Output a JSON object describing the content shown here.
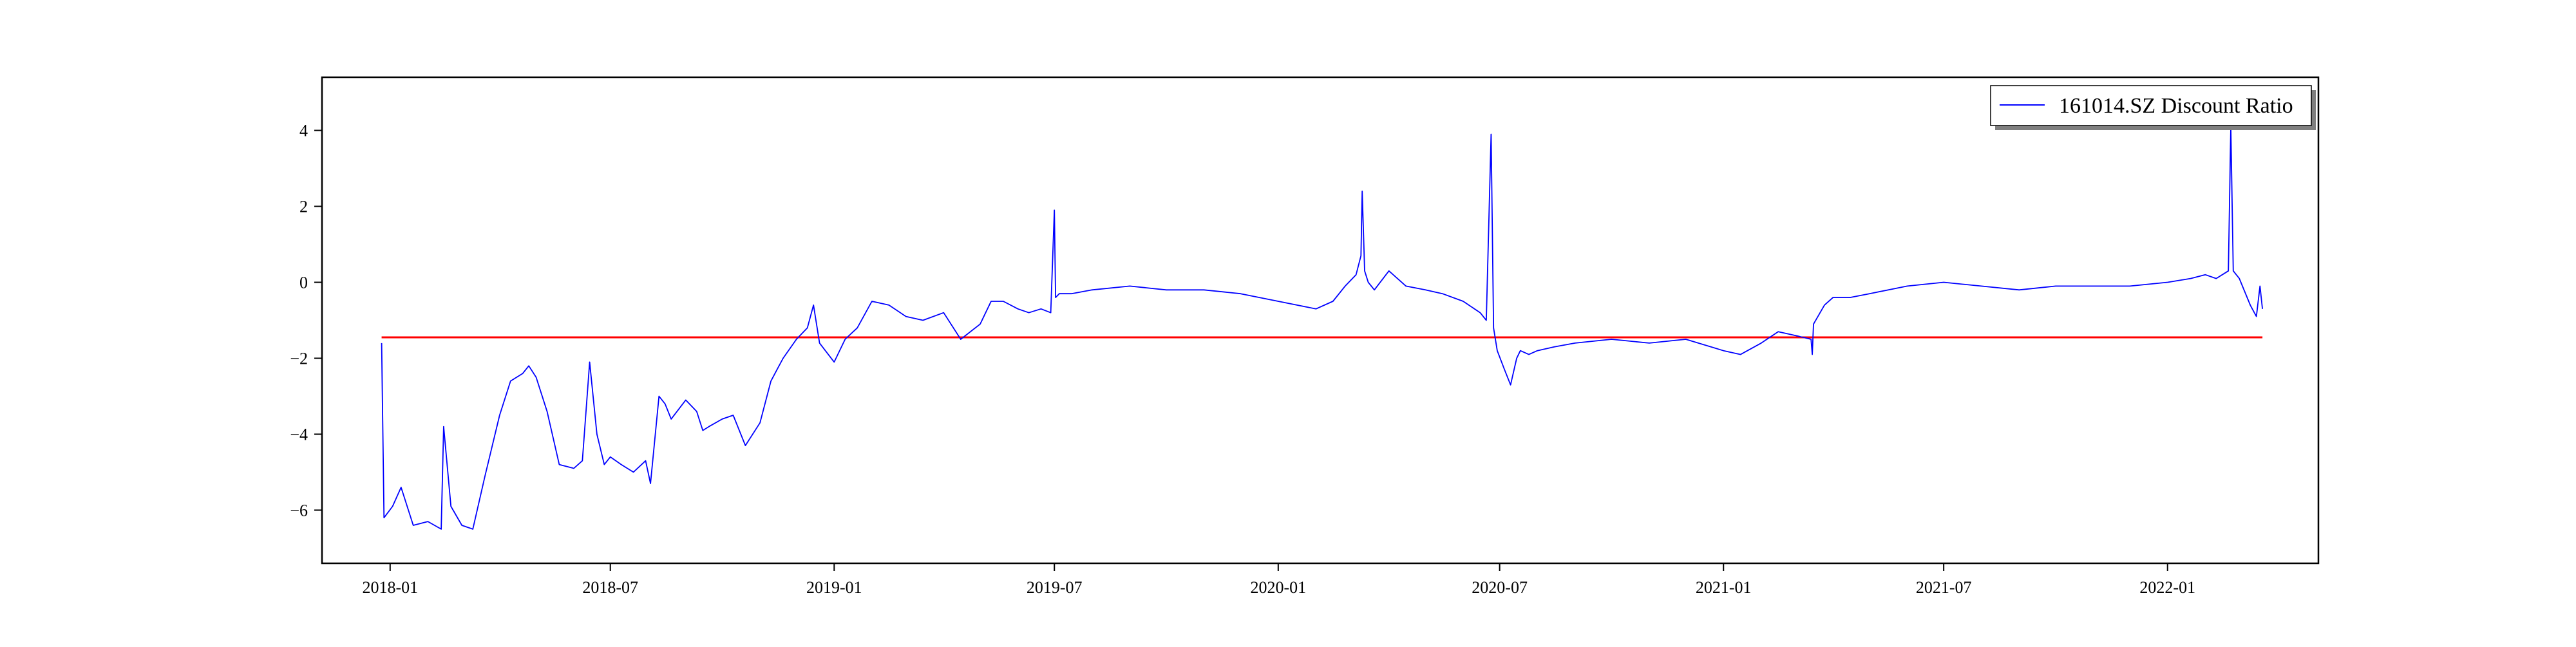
{
  "chart_data": {
    "type": "line",
    "title": "",
    "xlabel": "",
    "ylabel": "",
    "x_range": [
      "2017-11-06",
      "2022-05-05"
    ],
    "ylim": [
      -7.4,
      5.4
    ],
    "x_ticks": [
      "2018-01",
      "2018-07",
      "2019-01",
      "2019-07",
      "2020-01",
      "2020-07",
      "2021-01",
      "2021-07",
      "2022-01"
    ],
    "y_ticks": [
      "-6",
      "-4",
      "-2",
      "0",
      "2",
      "4"
    ],
    "grid": false,
    "legend": {
      "placement": "top-right",
      "entries": [
        "161014.SZ Discount Ratio"
      ]
    },
    "colors": {
      "series": "#0000ff",
      "reference_line": "#ff0000",
      "axes": "#000000"
    },
    "reference_line": {
      "y": -1.45,
      "x_start": "2017-12-25",
      "x_end": "2022-03-20"
    },
    "series": [
      {
        "name": "161014.SZ Discount Ratio",
        "x": [
          "2017-12-25",
          "2017-12-27",
          "2018-01-03",
          "2018-01-10",
          "2018-01-20",
          "2018-02-01",
          "2018-02-12",
          "2018-02-14",
          "2018-02-20",
          "2018-03-01",
          "2018-03-10",
          "2018-03-20",
          "2018-04-01",
          "2018-04-10",
          "2018-04-20",
          "2018-04-25",
          "2018-05-01",
          "2018-05-10",
          "2018-05-20",
          "2018-06-01",
          "2018-06-08",
          "2018-06-14",
          "2018-06-20",
          "2018-06-26",
          "2018-07-01",
          "2018-07-10",
          "2018-07-20",
          "2018-07-30",
          "2018-08-03",
          "2018-08-10",
          "2018-08-15",
          "2018-08-20",
          "2018-09-01",
          "2018-09-10",
          "2018-09-15",
          "2018-09-20",
          "2018-10-01",
          "2018-10-10",
          "2018-10-20",
          "2018-11-01",
          "2018-11-10",
          "2018-11-15",
          "2018-11-20",
          "2018-12-01",
          "2018-12-10",
          "2018-12-15",
          "2018-12-20",
          "2019-01-01",
          "2019-01-10",
          "2019-01-20",
          "2019-02-01",
          "2019-02-15",
          "2019-03-01",
          "2019-03-15",
          "2019-04-01",
          "2019-04-15",
          "2019-05-01",
          "2019-05-10",
          "2019-05-20",
          "2019-06-01",
          "2019-06-10",
          "2019-06-20",
          "2019-06-28",
          "2019-07-01",
          "2019-07-02",
          "2019-07-05",
          "2019-07-15",
          "2019-08-01",
          "2019-09-01",
          "2019-10-01",
          "2019-11-01",
          "2019-12-01",
          "2020-01-01",
          "2020-02-01",
          "2020-02-15",
          "2020-02-25",
          "2020-03-05",
          "2020-03-09",
          "2020-03-10",
          "2020-03-12",
          "2020-03-15",
          "2020-03-20",
          "2020-04-01",
          "2020-04-15",
          "2020-05-01",
          "2020-05-15",
          "2020-06-01",
          "2020-06-15",
          "2020-06-20",
          "2020-06-24",
          "2020-06-26",
          "2020-06-27",
          "2020-06-29",
          "2020-07-05",
          "2020-07-10",
          "2020-07-15",
          "2020-07-18",
          "2020-07-25",
          "2020-08-01",
          "2020-08-15",
          "2020-09-01",
          "2020-10-01",
          "2020-11-01",
          "2020-12-01",
          "2021-01-01",
          "2021-01-15",
          "2021-02-01",
          "2021-02-15",
          "2021-03-01",
          "2021-03-14",
          "2021-03-15",
          "2021-03-16",
          "2021-03-25",
          "2021-04-01",
          "2021-04-15",
          "2021-05-01",
          "2021-06-01",
          "2021-07-01",
          "2021-08-01",
          "2021-09-01",
          "2021-10-01",
          "2021-11-01",
          "2021-12-01",
          "2022-01-01",
          "2022-01-20",
          "2022-02-01",
          "2022-02-10",
          "2022-02-20",
          "2022-02-22",
          "2022-02-24",
          "2022-03-01",
          "2022-03-10",
          "2022-03-15",
          "2022-03-18",
          "2022-03-20"
        ],
        "values": [
          -1.6,
          -6.2,
          -5.9,
          -5.4,
          -6.4,
          -6.3,
          -6.5,
          -3.8,
          -5.9,
          -6.4,
          -6.5,
          -5.1,
          -3.5,
          -2.6,
          -2.4,
          -2.2,
          -2.5,
          -3.4,
          -4.8,
          -4.9,
          -4.7,
          -2.1,
          -4.0,
          -4.8,
          -4.6,
          -4.8,
          -5.0,
          -4.7,
          -5.3,
          -3.0,
          -3.2,
          -3.6,
          -3.1,
          -3.4,
          -3.9,
          -3.8,
          -3.6,
          -3.5,
          -4.3,
          -3.7,
          -2.6,
          -2.3,
          -2.0,
          -1.5,
          -1.2,
          -0.6,
          -1.6,
          -2.1,
          -1.5,
          -1.2,
          -0.5,
          -0.6,
          -0.9,
          -1.0,
          -0.8,
          -1.5,
          -1.1,
          -0.5,
          -0.5,
          -0.7,
          -0.8,
          -0.7,
          -0.8,
          1.9,
          -0.4,
          -0.3,
          -0.3,
          -0.2,
          -0.1,
          -0.2,
          -0.2,
          -0.3,
          -0.5,
          -0.7,
          -0.5,
          -0.1,
          0.2,
          0.7,
          2.4,
          0.3,
          0.0,
          -0.2,
          0.3,
          -0.1,
          -0.2,
          -0.3,
          -0.5,
          -0.8,
          -1.0,
          3.9,
          -1.2,
          -1.4,
          -1.8,
          -2.3,
          -2.7,
          -2.0,
          -1.8,
          -1.9,
          -1.8,
          -1.7,
          -1.6,
          -1.5,
          -1.6,
          -1.5,
          -1.8,
          -1.9,
          -1.6,
          -1.3,
          -1.4,
          -1.5,
          -1.9,
          -1.1,
          -0.6,
          -0.4,
          -0.4,
          -0.3,
          -0.1,
          0.0,
          -0.1,
          -0.2,
          -0.1,
          -0.1,
          -0.1,
          0.0,
          0.1,
          0.2,
          0.1,
          0.3,
          4.1,
          0.3,
          0.1,
          -0.6,
          -0.9,
          -0.1,
          -0.7
        ]
      }
    ]
  }
}
